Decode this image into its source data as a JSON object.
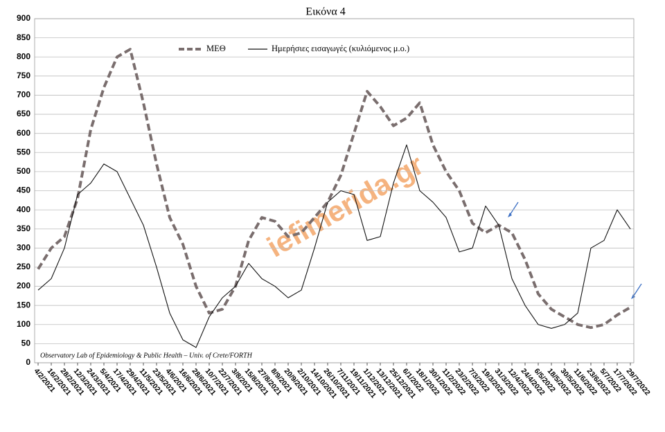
{
  "chart_data": {
    "type": "line",
    "title": "Εικόνα 4",
    "categories": [
      "4/2/2021",
      "16/2/2021",
      "28/2/2021",
      "12/3/2021",
      "24/3/2021",
      "5/4/2021",
      "17/4/2021",
      "29/4/2021",
      "11/5/2021",
      "23/5/2021",
      "4/6/2021",
      "16/6/2021",
      "28/6/2021",
      "10/7/2021",
      "22/7/2021",
      "3/8/2021",
      "15/8/2021",
      "27/8/2021",
      "8/9/2021",
      "20/9/2021",
      "2/10/2021",
      "14/10/2021",
      "26/10/2021",
      "7/11/2021",
      "19/11/2021",
      "1/12/2021",
      "13/12/2021",
      "25/12/2021",
      "6/1/2022",
      "18/1/2022",
      "30/1/2022",
      "11/2/2022",
      "23/2/2022",
      "7/3/2022",
      "19/3/2022",
      "31/3/2022",
      "12/4/2022",
      "24/4/2022",
      "6/5/2022",
      "18/5/2022",
      "30/5/2022",
      "11/6/2022",
      "23/6/2022",
      "5/7/2022",
      "17/7/2022",
      "29/7/2022"
    ],
    "series": [
      {
        "name": "ΜΕΘ",
        "color": "#7a6e6e",
        "dashed": true,
        "values": [
          245,
          300,
          330,
          430,
          610,
          720,
          800,
          820,
          680,
          520,
          380,
          310,
          200,
          130,
          140,
          200,
          320,
          380,
          370,
          330,
          340,
          380,
          420,
          490,
          600,
          710,
          670,
          620,
          640,
          680,
          570,
          500,
          450,
          365,
          340,
          360,
          340,
          270,
          180,
          140,
          120,
          100,
          92,
          100,
          125,
          145
        ]
      },
      {
        "name": "Ημερήσιες εισαγωγές (κυλιόμενος μ.ο.)",
        "color": "#111111",
        "dashed": false,
        "values": [
          190,
          220,
          300,
          440,
          470,
          520,
          500,
          430,
          360,
          250,
          130,
          60,
          40,
          120,
          170,
          200,
          260,
          220,
          200,
          170,
          190,
          300,
          420,
          450,
          440,
          320,
          330,
          470,
          570,
          450,
          420,
          380,
          290,
          300,
          410,
          360,
          220,
          150,
          100,
          90,
          100,
          130,
          300,
          320,
          400,
          350
        ]
      }
    ],
    "ylim": [
      0,
      900
    ],
    "yticks": [
      0,
      50,
      100,
      150,
      200,
      250,
      300,
      350,
      400,
      450,
      500,
      550,
      600,
      650,
      700,
      750,
      800,
      850,
      900
    ],
    "grid": true,
    "legend": "top",
    "watermark": "iefimerida.gr",
    "source": "Observatory Lab of Epidemiology & Public Health – Univ. of Crete/FORTH"
  }
}
